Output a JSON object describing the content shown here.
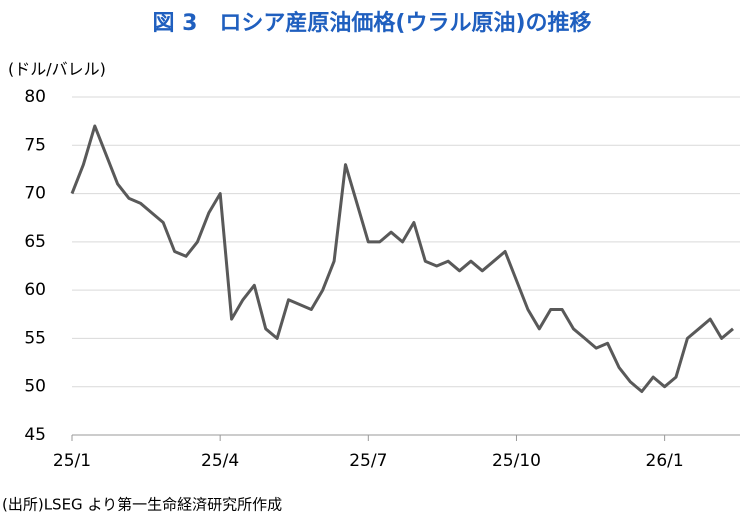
{
  "chart_data": {
    "type": "line",
    "title": "図 3　ロシア産原油価格(ウラル原油)の推移",
    "y_label": "(ドル/バレル)",
    "source": "(出所)LSEG より第一生命経済研究所作成",
    "categories": [
      "25/1",
      null,
      null,
      null,
      null,
      null,
      null,
      null,
      null,
      null,
      null,
      null,
      null,
      "25/4",
      null,
      null,
      null,
      null,
      null,
      null,
      null,
      null,
      null,
      null,
      null,
      null,
      "25/7",
      null,
      null,
      null,
      null,
      null,
      null,
      null,
      null,
      null,
      null,
      null,
      null,
      "25/10",
      null,
      null,
      null,
      null,
      null,
      null,
      null,
      null,
      null,
      null,
      null,
      null,
      "26/1",
      null,
      null,
      null,
      null,
      null,
      null
    ],
    "series": [
      {
        "name": "Urals",
        "color": "#595959",
        "values": [
          70,
          73,
          77,
          74,
          71,
          69.5,
          69,
          68,
          67,
          64,
          63.5,
          65,
          68,
          70,
          57,
          59,
          60.5,
          56,
          55,
          59,
          58.5,
          58,
          60,
          63,
          73,
          69,
          65,
          65,
          66,
          65,
          67,
          63,
          62.5,
          63,
          62,
          63,
          62,
          63,
          64,
          61,
          58,
          56,
          58,
          58,
          56,
          55,
          54,
          54.5,
          52,
          50.5,
          49.5,
          51,
          50,
          51,
          55,
          56,
          57,
          55,
          56
        ]
      }
    ],
    "ylim": [
      45,
      80
    ],
    "yticks": [
      45,
      50,
      55,
      60,
      65,
      70,
      75,
      80
    ],
    "grid": true
  }
}
